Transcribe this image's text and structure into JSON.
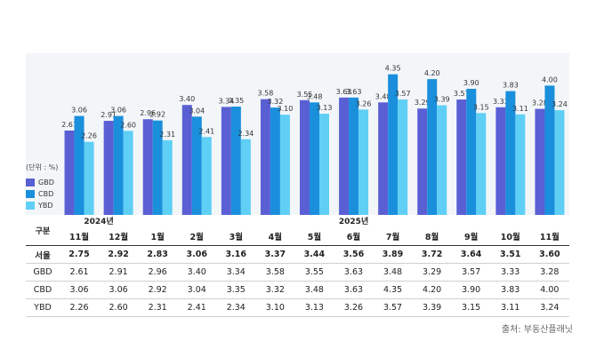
{
  "unit_label": "(단위 : %)",
  "legend": [
    {
      "name": "GBD",
      "color": "#5a5fd4"
    },
    {
      "name": "CBD",
      "color": "#1a8fdc"
    },
    {
      "name": "YBD",
      "color": "#5fcff5"
    }
  ],
  "table": {
    "header_label": "구분",
    "year_2024": "2024년",
    "year_2025": "2025년",
    "row_labels": {
      "seoul": "서울",
      "gbd": "GBD",
      "cbd": "CBD",
      "ybd": "YBD"
    }
  },
  "chart_data": {
    "type": "bar",
    "categories": [
      "11월",
      "12월",
      "1월",
      "2월",
      "3월",
      "4월",
      "5월",
      "6월",
      "7월",
      "8월",
      "9월",
      "10월",
      "11월"
    ],
    "series": [
      {
        "name": "GBD",
        "values": [
          2.61,
          2.91,
          2.96,
          3.4,
          3.34,
          3.58,
          3.55,
          3.63,
          3.48,
          3.29,
          3.57,
          3.33,
          3.28
        ]
      },
      {
        "name": "CBD",
        "values": [
          3.06,
          3.06,
          2.92,
          3.04,
          3.35,
          3.32,
          3.48,
          3.63,
          4.35,
          4.2,
          3.9,
          3.83,
          4.0
        ]
      },
      {
        "name": "YBD",
        "values": [
          2.26,
          2.6,
          2.31,
          2.41,
          2.34,
          3.1,
          3.13,
          3.26,
          3.57,
          3.39,
          3.15,
          3.11,
          3.24
        ]
      }
    ],
    "seoul": {
      "name": "서울",
      "values": [
        "2.75",
        "2.92",
        "2.83",
        "3.06",
        "3.16",
        "3.37",
        "3.44",
        "3.56",
        "3.89",
        "3.72",
        "3.64",
        "3.51",
        "3.60"
      ]
    },
    "value_labels": {
      "GBD": [
        "2.61",
        "2.91",
        "2.96",
        "3.40",
        "3.34",
        "3.58",
        "3.55",
        "3.63",
        "3.48",
        "3.29",
        "3.57",
        "3.33",
        "3.28"
      ],
      "CBD": [
        "3.06",
        "3.06",
        "2.92",
        "3.04",
        "3.35",
        "3.32",
        "3.48",
        "3.63",
        "4.35",
        "4.20",
        "3.90",
        "3.83",
        "4.00"
      ],
      "YBD": [
        "2.26",
        "2.60",
        "2.31",
        "2.41",
        "2.34",
        "3.10",
        "3.13",
        "3.26",
        "3.57",
        "3.39",
        "3.15",
        "3.11",
        "3.24"
      ]
    },
    "ylim": [
      0,
      4.5
    ],
    "grid": false
  },
  "source": "출처: 부동산플래닛"
}
